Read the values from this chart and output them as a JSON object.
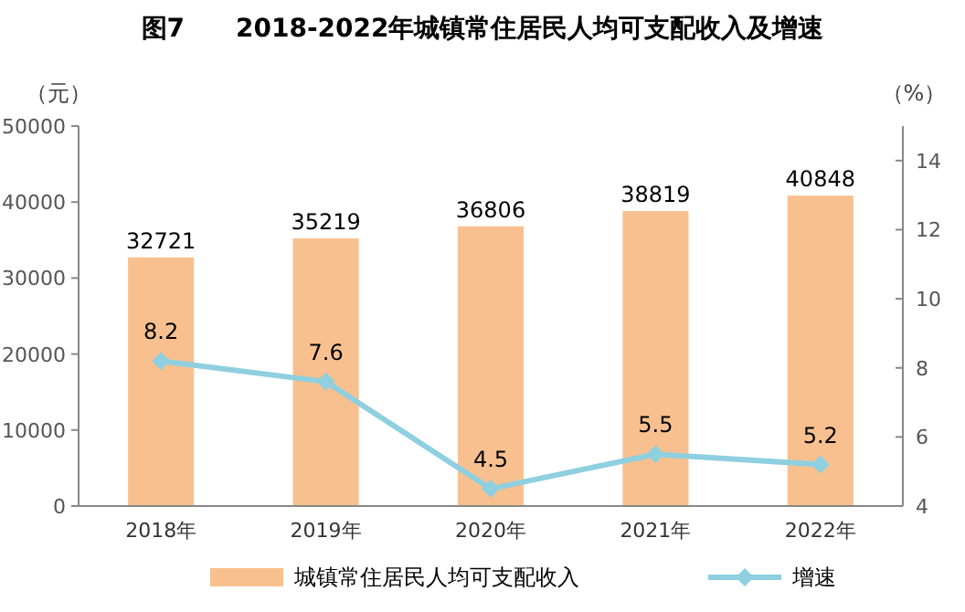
{
  "chart_data": {
    "type": "bar",
    "title": "图7　　2018-2022年城镇常住居民人均可支配收入及增速",
    "categories": [
      "2018年",
      "2019年",
      "2020年",
      "2021年",
      "2022年"
    ],
    "series": [
      {
        "name": "城镇常住居民人均可支配收入",
        "color": "#f8c08f",
        "values": [
          32721,
          35219,
          36806,
          38819,
          40848
        ]
      },
      {
        "name": "增速",
        "type": "line",
        "axis": "y2",
        "color": "#8ecfe0",
        "marker": "diamond",
        "values": [
          8.2,
          7.6,
          4.5,
          5.5,
          5.2
        ]
      }
    ],
    "ylabel": "（元）",
    "y2label": "（%）",
    "ylim": [
      0,
      50000
    ],
    "yticks": [
      0,
      10000,
      20000,
      30000,
      40000,
      50000
    ],
    "y2lim": [
      4,
      15
    ],
    "y2ticks": [
      4,
      6,
      8,
      10,
      12,
      14
    ],
    "data_labels": true,
    "grid": false,
    "legend": "bottom"
  }
}
